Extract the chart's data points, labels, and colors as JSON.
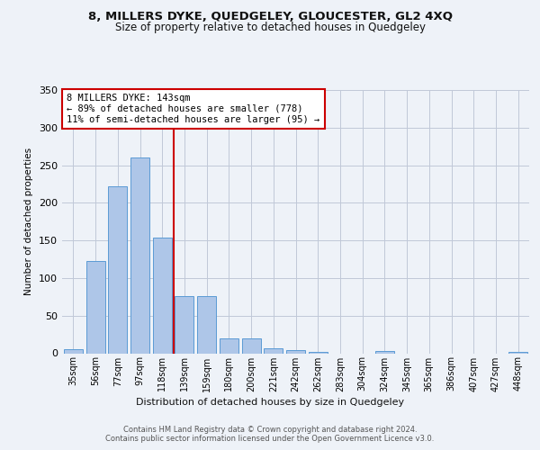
{
  "title1": "8, MILLERS DYKE, QUEDGELEY, GLOUCESTER, GL2 4XQ",
  "title2": "Size of property relative to detached houses in Quedgeley",
  "xlabel": "Distribution of detached houses by size in Quedgeley",
  "ylabel": "Number of detached properties",
  "bar_labels": [
    "35sqm",
    "56sqm",
    "77sqm",
    "97sqm",
    "118sqm",
    "139sqm",
    "159sqm",
    "180sqm",
    "200sqm",
    "221sqm",
    "242sqm",
    "262sqm",
    "283sqm",
    "304sqm",
    "324sqm",
    "345sqm",
    "365sqm",
    "386sqm",
    "407sqm",
    "427sqm",
    "448sqm"
  ],
  "bar_values": [
    5,
    123,
    222,
    260,
    154,
    76,
    76,
    20,
    20,
    7,
    4,
    2,
    0,
    0,
    3,
    0,
    0,
    0,
    0,
    0,
    2
  ],
  "bar_color": "#aec6e8",
  "bar_edge_color": "#5b9bd5",
  "vline_x_idx": 4.5,
  "vline_color": "#cc0000",
  "annotation_text": "8 MILLERS DYKE: 143sqm\n← 89% of detached houses are smaller (778)\n11% of semi-detached houses are larger (95) →",
  "annotation_box_color": "#ffffff",
  "annotation_box_edge": "#cc0000",
  "bg_color": "#eef2f8",
  "plot_bg_color": "#eef2f8",
  "footer": "Contains HM Land Registry data © Crown copyright and database right 2024.\nContains public sector information licensed under the Open Government Licence v3.0.",
  "ylim": [
    0,
    340
  ],
  "yticks": [
    0,
    50,
    100,
    150,
    200,
    250,
    300,
    350
  ]
}
